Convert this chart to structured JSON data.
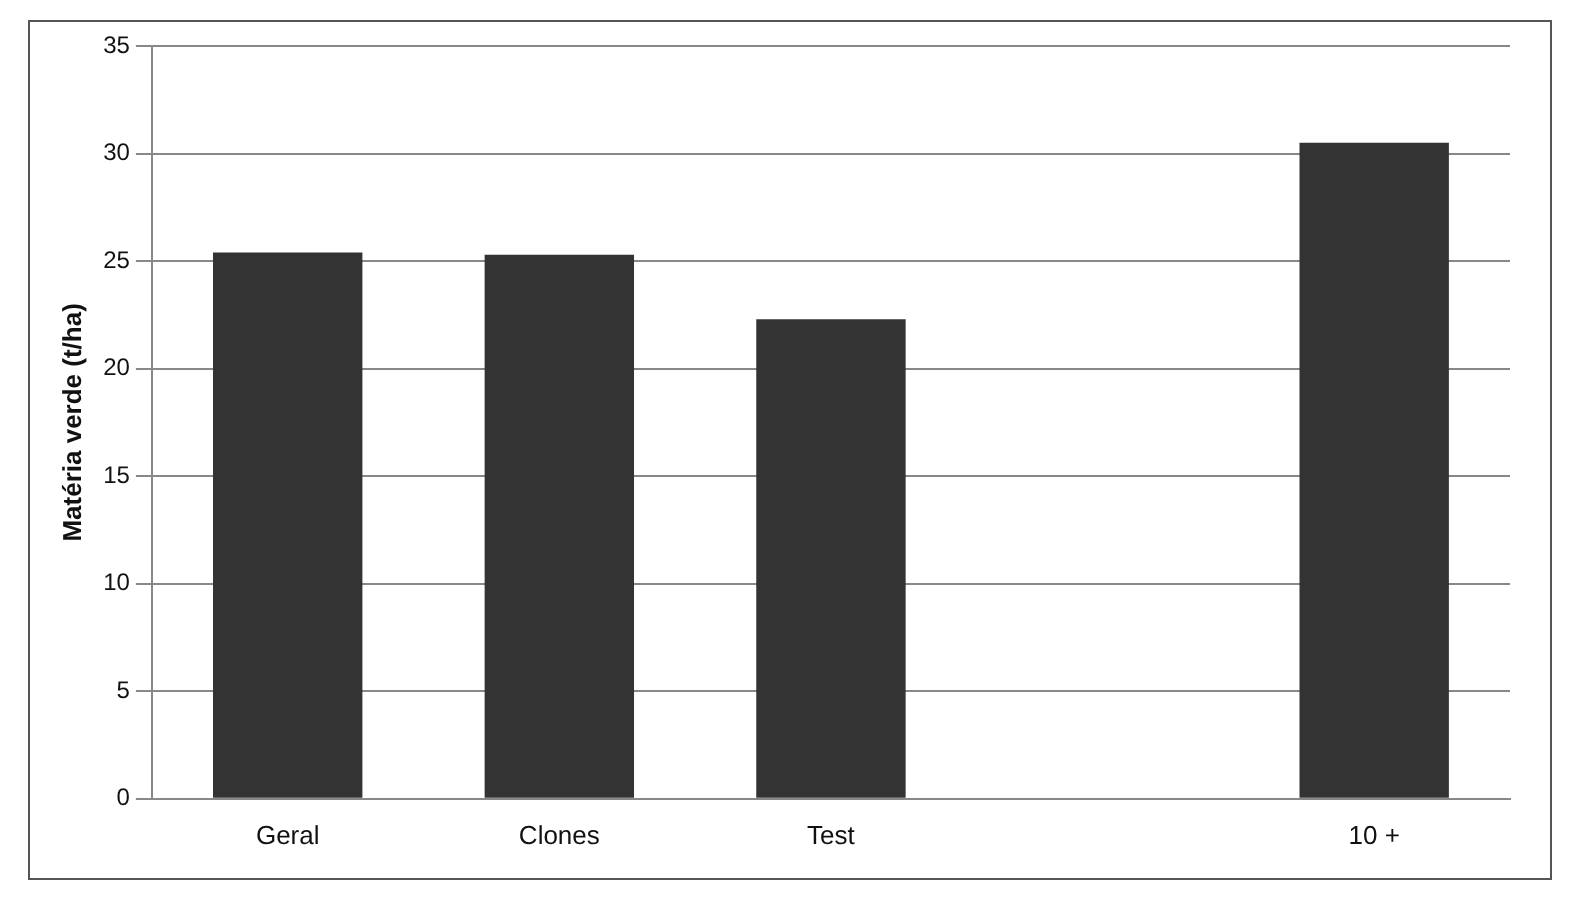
{
  "chart_data": {
    "type": "bar",
    "ylabel": "Matéria verde (t/ha)",
    "categories": [
      "Geral",
      "Clones",
      "Test",
      null,
      "10 +"
    ],
    "values": [
      25.4,
      25.3,
      22.3,
      null,
      30.5
    ],
    "color": "#333333",
    "ylim": [
      0,
      35
    ],
    "yticks": [
      0,
      5,
      10,
      15,
      20,
      25,
      30,
      35
    ],
    "grid": "y",
    "legend": false
  }
}
